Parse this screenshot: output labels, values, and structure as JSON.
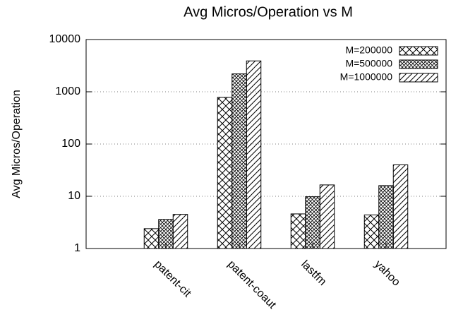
{
  "chart_data": {
    "type": "bar",
    "title": "Avg Micros/Operation vs M",
    "y_label": "Avg Micros/Operation",
    "categories": [
      "patent-cit",
      "patent-coaut",
      "lastfm",
      "yahoo"
    ],
    "series": [
      {
        "name": "M=200000",
        "color": "#000000",
        "values": [
          2.4,
          780,
          4.6,
          4.4
        ]
      },
      {
        "name": "M=500000",
        "color": "#000000",
        "values": [
          3.6,
          2200,
          9.8,
          16
        ]
      },
      {
        "name": "M=1000000",
        "color": "#000000",
        "values": [
          4.5,
          3900,
          16.5,
          40
        ]
      }
    ],
    "ylim": [
      1,
      10000
    ],
    "yticks": [
      1,
      10,
      100,
      1000,
      10000
    ],
    "log_y": true,
    "grid": true,
    "legend": "top-right"
  }
}
